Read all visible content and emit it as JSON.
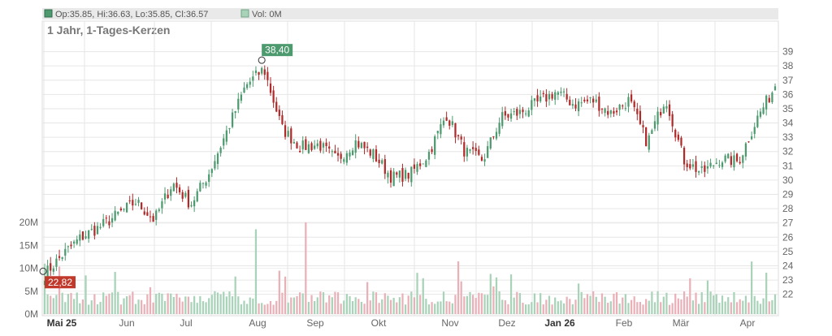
{
  "header": {
    "legend_price": "Op:35.85, Hi:36.63, Lo:35.85, Cl:36.57",
    "legend_volume": "Vol: 0M",
    "subtitle": "1 Jahr, 1-Tages-Kerzen"
  },
  "colors": {
    "up": "#4c9a6e",
    "down": "#b02a2a",
    "up_volume": "#a8d3b8",
    "down_volume": "#eab0b8",
    "grid": "#e6e6e6",
    "axis_text": "#666666",
    "legend_bg": "#e9e9e9",
    "high_label_bg": "#4c9a6e",
    "low_label_bg": "#c0392b"
  },
  "chart_data": {
    "type": "candlestick",
    "price_axis": {
      "ticks": [
        22,
        23,
        24,
        25,
        26,
        27,
        28,
        29,
        30,
        31,
        32,
        33,
        34,
        35,
        36,
        37,
        38,
        39
      ],
      "range": [
        21.3,
        40.0
      ]
    },
    "volume_axis": {
      "ticks": [
        0,
        5,
        10,
        15,
        20
      ],
      "tick_labels": [
        "0M",
        "5M",
        "10M",
        "15M",
        "20M"
      ],
      "range": [
        0,
        20
      ]
    },
    "x_axis": {
      "labels": [
        "Mai 25",
        "Jun",
        "Jul",
        "Aug",
        "Sep",
        "Okt",
        "Nov",
        "Dez",
        "Jan 26",
        "Feb",
        "Mär",
        "Apr"
      ],
      "bold": [
        "Mai 25",
        "Jan 26"
      ]
    },
    "annotations": {
      "high": {
        "value": 38.4,
        "label": "38,40"
      },
      "low": {
        "value": 22.82,
        "label": "22,82"
      }
    },
    "monthly_path": [
      {
        "month": "Mai 25",
        "close": 23.4
      },
      {
        "month": "Mai 25",
        "close": 24.8
      },
      {
        "month": "Mai 25",
        "close": 26.0
      },
      {
        "month": "Jun",
        "close": 26.7
      },
      {
        "month": "Jun",
        "close": 27.6
      },
      {
        "month": "Jun",
        "close": 28.5
      },
      {
        "month": "Jul",
        "close": 27.2
      },
      {
        "month": "Jul",
        "close": 29.8
      },
      {
        "month": "Jul",
        "close": 28.3
      },
      {
        "month": "Aug",
        "close": 30.5
      },
      {
        "month": "Aug",
        "close": 33.5
      },
      {
        "month": "Aug",
        "close": 36.6
      },
      {
        "month": "Aug",
        "close": 37.8
      },
      {
        "month": "Sep",
        "close": 33.6
      },
      {
        "month": "Sep",
        "close": 32.3
      },
      {
        "month": "Sep",
        "close": 32.5
      },
      {
        "month": "Okt",
        "close": 31.4
      },
      {
        "month": "Okt",
        "close": 32.7
      },
      {
        "month": "Okt",
        "close": 31.8
      },
      {
        "month": "Okt",
        "close": 30.2
      },
      {
        "month": "Nov",
        "close": 30.4
      },
      {
        "month": "Nov",
        "close": 31.8
      },
      {
        "month": "Nov",
        "close": 34.6
      },
      {
        "month": "Nov",
        "close": 32.0
      },
      {
        "month": "Dez",
        "close": 31.4
      },
      {
        "month": "Dez",
        "close": 34.4
      },
      {
        "month": "Dez",
        "close": 34.7
      },
      {
        "month": "Jan 26",
        "close": 35.4
      },
      {
        "month": "Jan 26",
        "close": 36.2
      },
      {
        "month": "Jan 26",
        "close": 35.3
      },
      {
        "month": "Jan 26",
        "close": 35.6
      },
      {
        "month": "Feb",
        "close": 34.7
      },
      {
        "month": "Feb",
        "close": 35.6
      },
      {
        "month": "Feb",
        "close": 32.6
      },
      {
        "month": "Feb",
        "close": 35.8
      },
      {
        "month": "Mär",
        "close": 31.4
      },
      {
        "month": "Mär",
        "close": 30.5
      },
      {
        "month": "Mär",
        "close": 31.5
      },
      {
        "month": "Apr",
        "close": 31.3
      },
      {
        "month": "Apr",
        "close": 34.3
      },
      {
        "month": "Apr",
        "close": 36.57
      }
    ]
  }
}
